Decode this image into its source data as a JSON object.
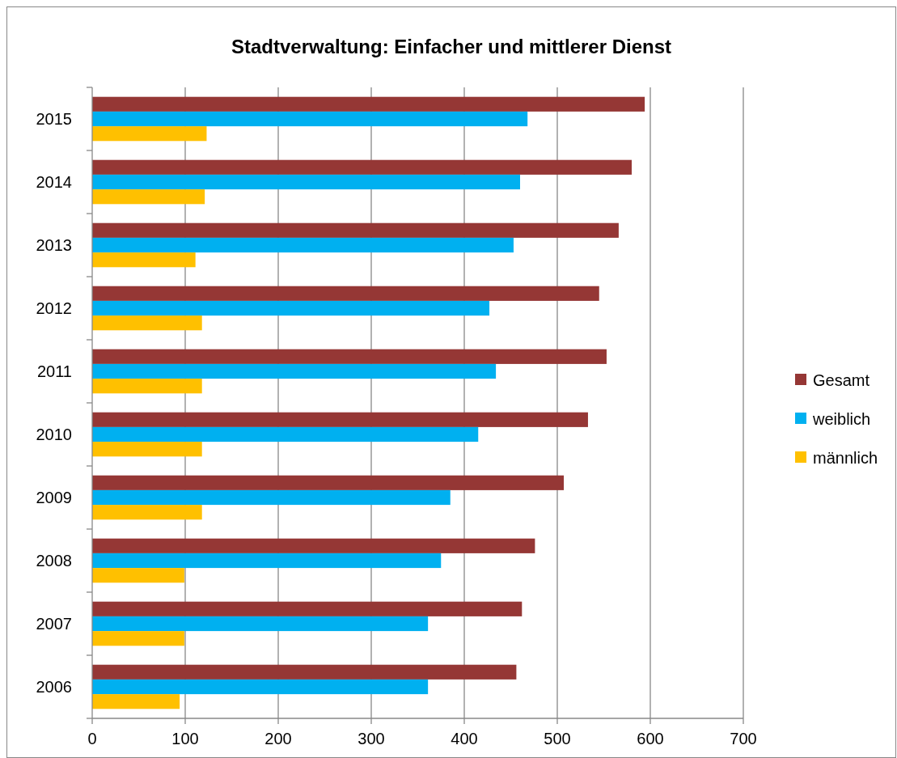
{
  "chart_data": {
    "type": "bar",
    "orientation": "horizontal",
    "title": "Stadtverwaltung: Einfacher und mittlerer Dienst",
    "categories": [
      "2015",
      "2014",
      "2013",
      "2012",
      "2011",
      "2010",
      "2009",
      "2008",
      "2007",
      "2006"
    ],
    "series": [
      {
        "name": "Gesamt",
        "color": "#953735",
        "values": [
          594,
          580,
          566,
          545,
          553,
          533,
          507,
          476,
          462,
          456
        ]
      },
      {
        "name": "weiblich",
        "color": "#00b0f0",
        "values": [
          468,
          460,
          453,
          427,
          434,
          415,
          385,
          375,
          361,
          361
        ]
      },
      {
        "name": "männlich",
        "color": "#ffc000",
        "values": [
          123,
          121,
          111,
          118,
          118,
          118,
          118,
          99,
          99,
          94
        ]
      }
    ],
    "xlim": [
      0,
      700
    ],
    "xticks": [
      0,
      100,
      200,
      300,
      400,
      500,
      600,
      700
    ],
    "grid": "x",
    "legend": "right"
  }
}
